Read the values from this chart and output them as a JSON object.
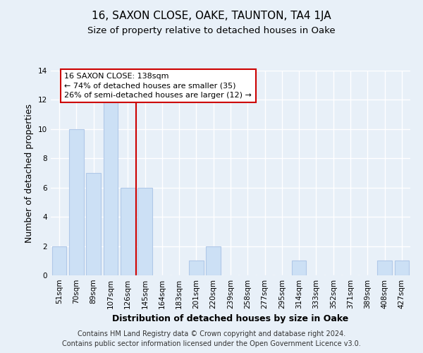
{
  "title": "16, SAXON CLOSE, OAKE, TAUNTON, TA4 1JA",
  "subtitle": "Size of property relative to detached houses in Oake",
  "xlabel": "Distribution of detached houses by size in Oake",
  "ylabel": "Number of detached properties",
  "bar_labels": [
    "51sqm",
    "70sqm",
    "89sqm",
    "107sqm",
    "126sqm",
    "145sqm",
    "164sqm",
    "183sqm",
    "201sqm",
    "220sqm",
    "239sqm",
    "258sqm",
    "277sqm",
    "295sqm",
    "314sqm",
    "333sqm",
    "352sqm",
    "371sqm",
    "389sqm",
    "408sqm",
    "427sqm"
  ],
  "bar_values": [
    2,
    10,
    7,
    12,
    6,
    6,
    0,
    0,
    1,
    2,
    0,
    0,
    0,
    0,
    1,
    0,
    0,
    0,
    0,
    1,
    1
  ],
  "bar_color": "#cce0f5",
  "bar_edge_color": "#b0c8e8",
  "vline_x": 4.5,
  "vline_color": "#cc0000",
  "annotation_line1": "16 SAXON CLOSE: 138sqm",
  "annotation_line2": "← 74% of detached houses are smaller (35)",
  "annotation_line3": "26% of semi-detached houses are larger (12) →",
  "annotation_box_facecolor": "#ffffff",
  "annotation_box_edgecolor": "#cc0000",
  "ylim": [
    0,
    14
  ],
  "yticks": [
    0,
    2,
    4,
    6,
    8,
    10,
    12,
    14
  ],
  "footer_line1": "Contains HM Land Registry data © Crown copyright and database right 2024.",
  "footer_line2": "Contains public sector information licensed under the Open Government Licence v3.0.",
  "bg_color": "#e8f0f8",
  "plot_bg_color": "#e8f0f8",
  "grid_color": "#ffffff",
  "title_fontsize": 11,
  "subtitle_fontsize": 9.5,
  "axis_label_fontsize": 9,
  "tick_fontsize": 7.5,
  "footer_fontsize": 7,
  "annotation_fontsize": 8
}
